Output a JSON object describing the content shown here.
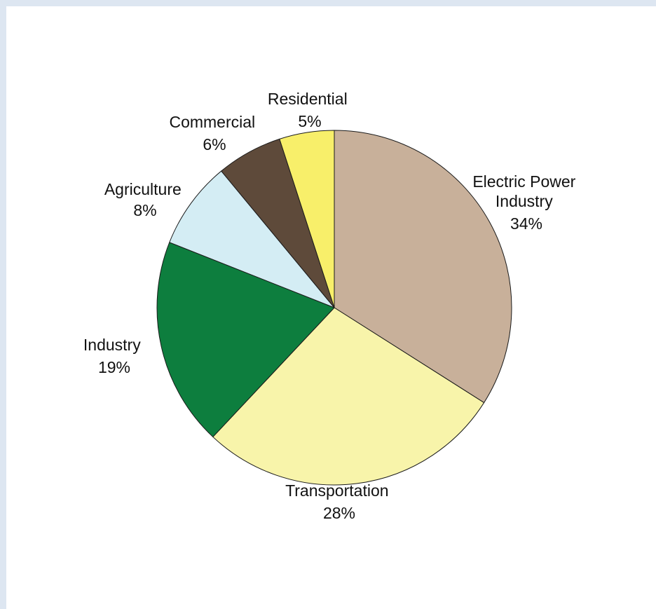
{
  "chart_data": {
    "type": "pie",
    "start_angle_deg": 0,
    "direction": "clockwise",
    "slices": [
      {
        "label_lines": [
          "Electric Power",
          "Industry",
          "34%"
        ],
        "value": 34,
        "color": "#c8b09a"
      },
      {
        "label_lines": [
          "Transportation",
          "28%"
        ],
        "value": 28,
        "color": "#f8f4aa"
      },
      {
        "label_lines": [
          "Industry",
          "19%"
        ],
        "value": 19,
        "color": "#0d7e3e"
      },
      {
        "label_lines": [
          "Agriculture",
          "8%"
        ],
        "value": 8,
        "color": "#d4edf4"
      },
      {
        "label_lines": [
          "Commercial",
          "6%"
        ],
        "value": 6,
        "color": "#5e4a3a"
      },
      {
        "label_lines": [
          "Residential",
          "5%"
        ],
        "value": 5,
        "color": "#f8ef6a"
      }
    ]
  },
  "colors": {
    "background": "#dde6f1",
    "panel": "#ffffff",
    "outline": "#1a1a1a"
  }
}
